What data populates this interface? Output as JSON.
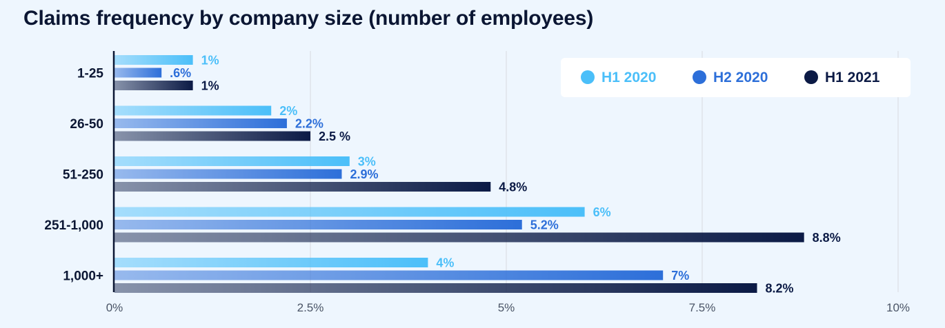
{
  "chart_data": {
    "type": "bar",
    "orientation": "horizontal",
    "title": "Claims frequency by company size (number of employees)",
    "categories": [
      "1-25",
      "26-50",
      "51-250",
      "251-1,000",
      "1,000+"
    ],
    "series": [
      {
        "name": "H1 2020",
        "color": "#4bbff9",
        "values": [
          1,
          2,
          3,
          6,
          4
        ],
        "labels": [
          "1%",
          "2%",
          "3%",
          "6%",
          "4%"
        ]
      },
      {
        "name": "H2 2020",
        "color": "#2d6fd9",
        "values": [
          0.6,
          2.2,
          2.9,
          5.2,
          7
        ],
        "labels": [
          ".6%",
          "2.2%",
          "2.9%",
          "5.2%",
          "7%"
        ]
      },
      {
        "name": "H1 2021",
        "color": "#0b1a45",
        "values": [
          1,
          2.5,
          4.8,
          8.8,
          8.2
        ],
        "labels": [
          "1%",
          "2.5 %",
          "4.8%",
          "8.8%",
          "8.2%"
        ]
      }
    ],
    "xlim": [
      0,
      10
    ],
    "xticks": [
      0,
      2.5,
      5,
      7.5,
      10
    ],
    "xtick_labels": [
      "0%",
      "2.5%",
      "5%",
      "7.5%",
      "10%"
    ],
    "grid": true,
    "legend_position": "top-right"
  }
}
